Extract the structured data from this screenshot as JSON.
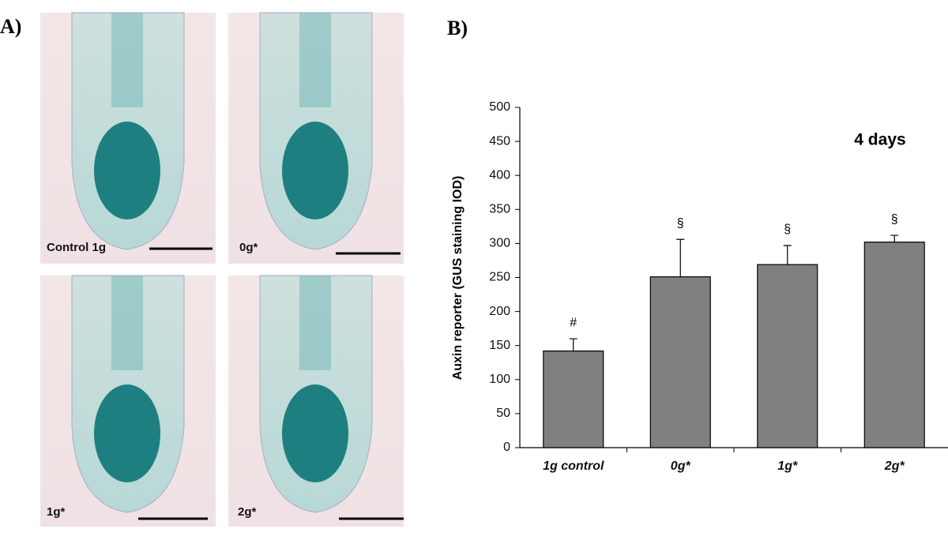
{
  "figure": {
    "panel_a": "A)",
    "panel_b": "B)",
    "images": [
      {
        "label": "Control 1g"
      },
      {
        "label": "0g*"
      },
      {
        "label": "1g*"
      },
      {
        "label": "2g*"
      }
    ]
  },
  "chart_data": {
    "type": "bar",
    "title": "4 days",
    "y_label": "Auxin reporter (GUS staining IOD)",
    "categories": [
      "1g control",
      "0g*",
      "1g*",
      "2g*"
    ],
    "series": [
      {
        "name": "Auxin reporter",
        "color": "#808080",
        "values": [
          142,
          251,
          269,
          302
        ],
        "errors": [
          18,
          55,
          28,
          10
        ],
        "annotations": [
          "#",
          "§",
          "§",
          "§"
        ]
      }
    ],
    "ylim": [
      0,
      500
    ],
    "yticks": [
      0,
      50,
      100,
      150,
      200,
      250,
      300,
      350,
      400,
      450,
      500
    ],
    "grid": false
  }
}
